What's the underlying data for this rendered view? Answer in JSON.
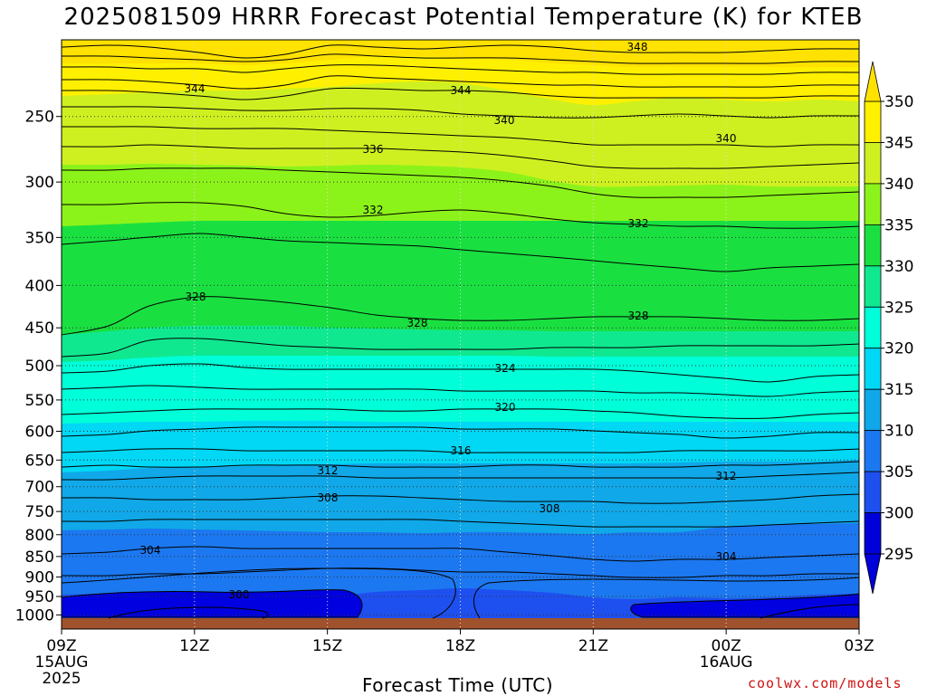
{
  "title": "2025081509 HRRR Forecast Potential Temperature (K) for KTEB",
  "credit": "coolwx.com/models",
  "colors": {
    "ground": "#a0522d",
    "fill": [
      "#0000d8",
      "#1e50f0",
      "#1c78f0",
      "#10a8e8",
      "#00d8f5",
      "#00ffd8",
      "#10e890",
      "#19e040",
      "#8cf31a",
      "#cff020",
      "#fff000",
      "#ffe200"
    ]
  },
  "chart_data": {
    "type": "time-height cross section",
    "title": "2025081509 HRRR Forecast Potential Temperature (K) for KTEB",
    "xlabel": "Forecast Time (UTC)",
    "ylabel": "",
    "x_ticks": [
      {
        "label": "09Z",
        "sub": [
          "15AUG",
          "2025"
        ]
      },
      {
        "label": "12Z",
        "sub": []
      },
      {
        "label": "15Z",
        "sub": []
      },
      {
        "label": "18Z",
        "sub": []
      },
      {
        "label": "21Z",
        "sub": []
      },
      {
        "label": "00Z",
        "sub": [
          "16AUG"
        ]
      },
      {
        "label": "03Z",
        "sub": []
      }
    ],
    "x_hours": [
      0,
      3,
      6,
      9,
      12,
      15,
      18
    ],
    "y_ticks": [
      250,
      300,
      350,
      400,
      450,
      500,
      550,
      600,
      650,
      700,
      750,
      800,
      850,
      900,
      950,
      1000
    ],
    "y_scale": "log pressure (hPa), inverted",
    "grid": "dotted",
    "colorbar": {
      "labels": [
        "295",
        "300",
        "305",
        "310",
        "315",
        "320",
        "325",
        "330",
        "335",
        "340",
        "345",
        "350"
      ],
      "levels": [
        295,
        300,
        305,
        310,
        315,
        320,
        325,
        330,
        335,
        340,
        345,
        350
      ],
      "extend": "both"
    },
    "contour_labels": [
      "348",
      "344",
      "344",
      "340",
      "340",
      "336",
      "332",
      "332",
      "328",
      "328",
      "328",
      "324",
      "320",
      "316",
      "312",
      "312",
      "308",
      "308",
      "304",
      "304",
      "300"
    ],
    "contour_interval": 2
  }
}
